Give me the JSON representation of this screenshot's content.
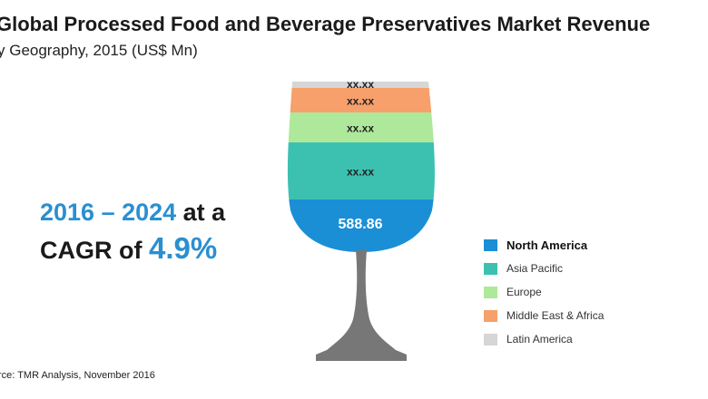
{
  "header": {
    "title": "Global Processed Food and Beverage Preservatives Market Revenue",
    "subtitle": "y Geography, 2015 (US$ Mn)"
  },
  "callout": {
    "line1_years": "2016 – 2024",
    "line1_rest": " at a",
    "line2_prefix": "CAGR of ",
    "line2_value": "4.9%"
  },
  "source": "rce: TMR Analysis, November 2016",
  "chart_data": {
    "type": "stacked-glass",
    "unit": "US$ Mn",
    "series": [
      {
        "name": "North America",
        "label": "588.86",
        "color": "#1a8fd6"
      },
      {
        "name": "Asia Pacific",
        "label": "xx.xx",
        "color": "#3cc1b1"
      },
      {
        "name": "Europe",
        "label": "xx.xx",
        "color": "#aee89a"
      },
      {
        "name": "Middle East & Africa",
        "label": "xx.xx",
        "color": "#f7a06b"
      },
      {
        "name": "Latin America",
        "label": "xx.xx",
        "color": "#d6d6d6"
      }
    ],
    "legend_position": "right"
  }
}
